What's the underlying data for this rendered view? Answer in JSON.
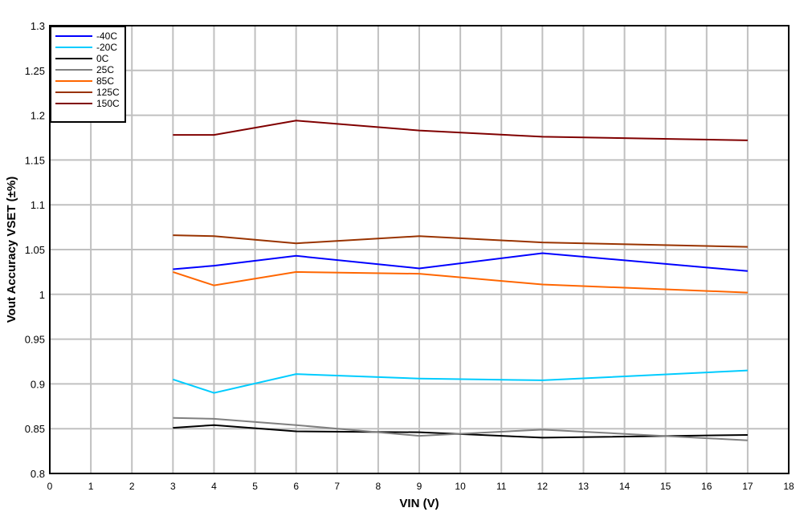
{
  "chart_data": {
    "type": "line",
    "title": "",
    "xlabel": "VIN (V)",
    "ylabel": "Vout Accuracy VSET (±%)",
    "xlim": [
      0,
      18
    ],
    "ylim": [
      0.8,
      1.3
    ],
    "xticks": [
      0,
      1,
      2,
      3,
      4,
      5,
      6,
      7,
      8,
      9,
      10,
      11,
      12,
      13,
      14,
      15,
      16,
      17,
      18
    ],
    "yticks": [
      0.8,
      0.85,
      0.9,
      0.95,
      1,
      1.05,
      1.1,
      1.15,
      1.2,
      1.25,
      1.3
    ],
    "ytick_labels": [
      "0.8",
      "0.85",
      "0.9",
      "0.95",
      "1",
      "1.05",
      "1.1",
      "1.15",
      "1.2",
      "1.25",
      "1.3"
    ],
    "grid": true,
    "legend_position": "top-left",
    "x": [
      3,
      4,
      6,
      9,
      12,
      17
    ],
    "series": [
      {
        "name": "-40C",
        "color": "#0000ff",
        "values": [
          1.028,
          1.032,
          1.043,
          1.029,
          1.046,
          1.026
        ]
      },
      {
        "name": "-20C",
        "color": "#00ccff",
        "values": [
          0.905,
          0.89,
          0.911,
          0.906,
          0.904,
          0.915
        ]
      },
      {
        "name": "0C",
        "color": "#000000",
        "values": [
          0.851,
          0.854,
          0.847,
          0.846,
          0.84,
          0.843
        ]
      },
      {
        "name": "25C",
        "color": "#808080",
        "values": [
          0.862,
          0.861,
          0.854,
          0.842,
          0.849,
          0.837
        ]
      },
      {
        "name": "85C",
        "color": "#ff6600",
        "values": [
          1.025,
          1.01,
          1.025,
          1.023,
          1.011,
          1.002
        ]
      },
      {
        "name": "125C",
        "color": "#993300",
        "values": [
          1.066,
          1.065,
          1.057,
          1.065,
          1.058,
          1.053
        ]
      },
      {
        "name": "150C",
        "color": "#800000",
        "values": [
          1.178,
          1.178,
          1.194,
          1.183,
          1.176,
          1.172
        ]
      }
    ]
  }
}
